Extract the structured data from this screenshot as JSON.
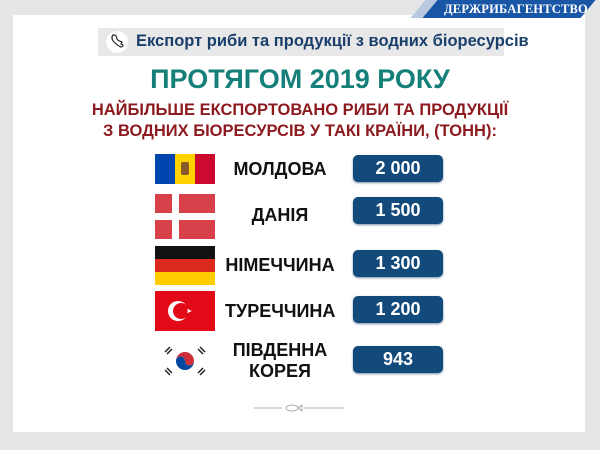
{
  "agency": "ДЕРЖРИБАГЕНТСТВО",
  "subheader": {
    "icon": "fish-icon",
    "text": "Експорт риби та продукції з водних біоресурсів"
  },
  "title": "ПРОТЯГОМ 2019 РОКУ",
  "subtitle_line1": "НАЙБІЛЬШЕ ЕКСПОРТОВАНО РИБИ ТА ПРОДУКЦІЇ",
  "subtitle_line2": "З ВОДНИХ БІОРЕСУРСІВ У ТАКІ КРАЇНИ, (ТОНН):",
  "countries": [
    {
      "name": "МОЛДОВА",
      "value": "2 000",
      "flag": "moldova-flag"
    },
    {
      "name": "ДАНІЯ",
      "value": "1 500",
      "flag": "denmark-flag"
    },
    {
      "name": "НІМЕЧЧИНА",
      "value": "1 300",
      "flag": "germany-flag"
    },
    {
      "name": "ТУРЕЧЧИНА",
      "value": "1 200",
      "flag": "turkey-flag"
    },
    {
      "name_line1": "ПІВДЕННА",
      "name_line2": "КОРЕЯ",
      "value": "943",
      "flag": "south-korea-flag"
    }
  ],
  "colors": {
    "title": "#15807a",
    "subtitle": "#8c1a1f",
    "value_box": "#134a7c",
    "agency_banner": "#1a56a6"
  }
}
